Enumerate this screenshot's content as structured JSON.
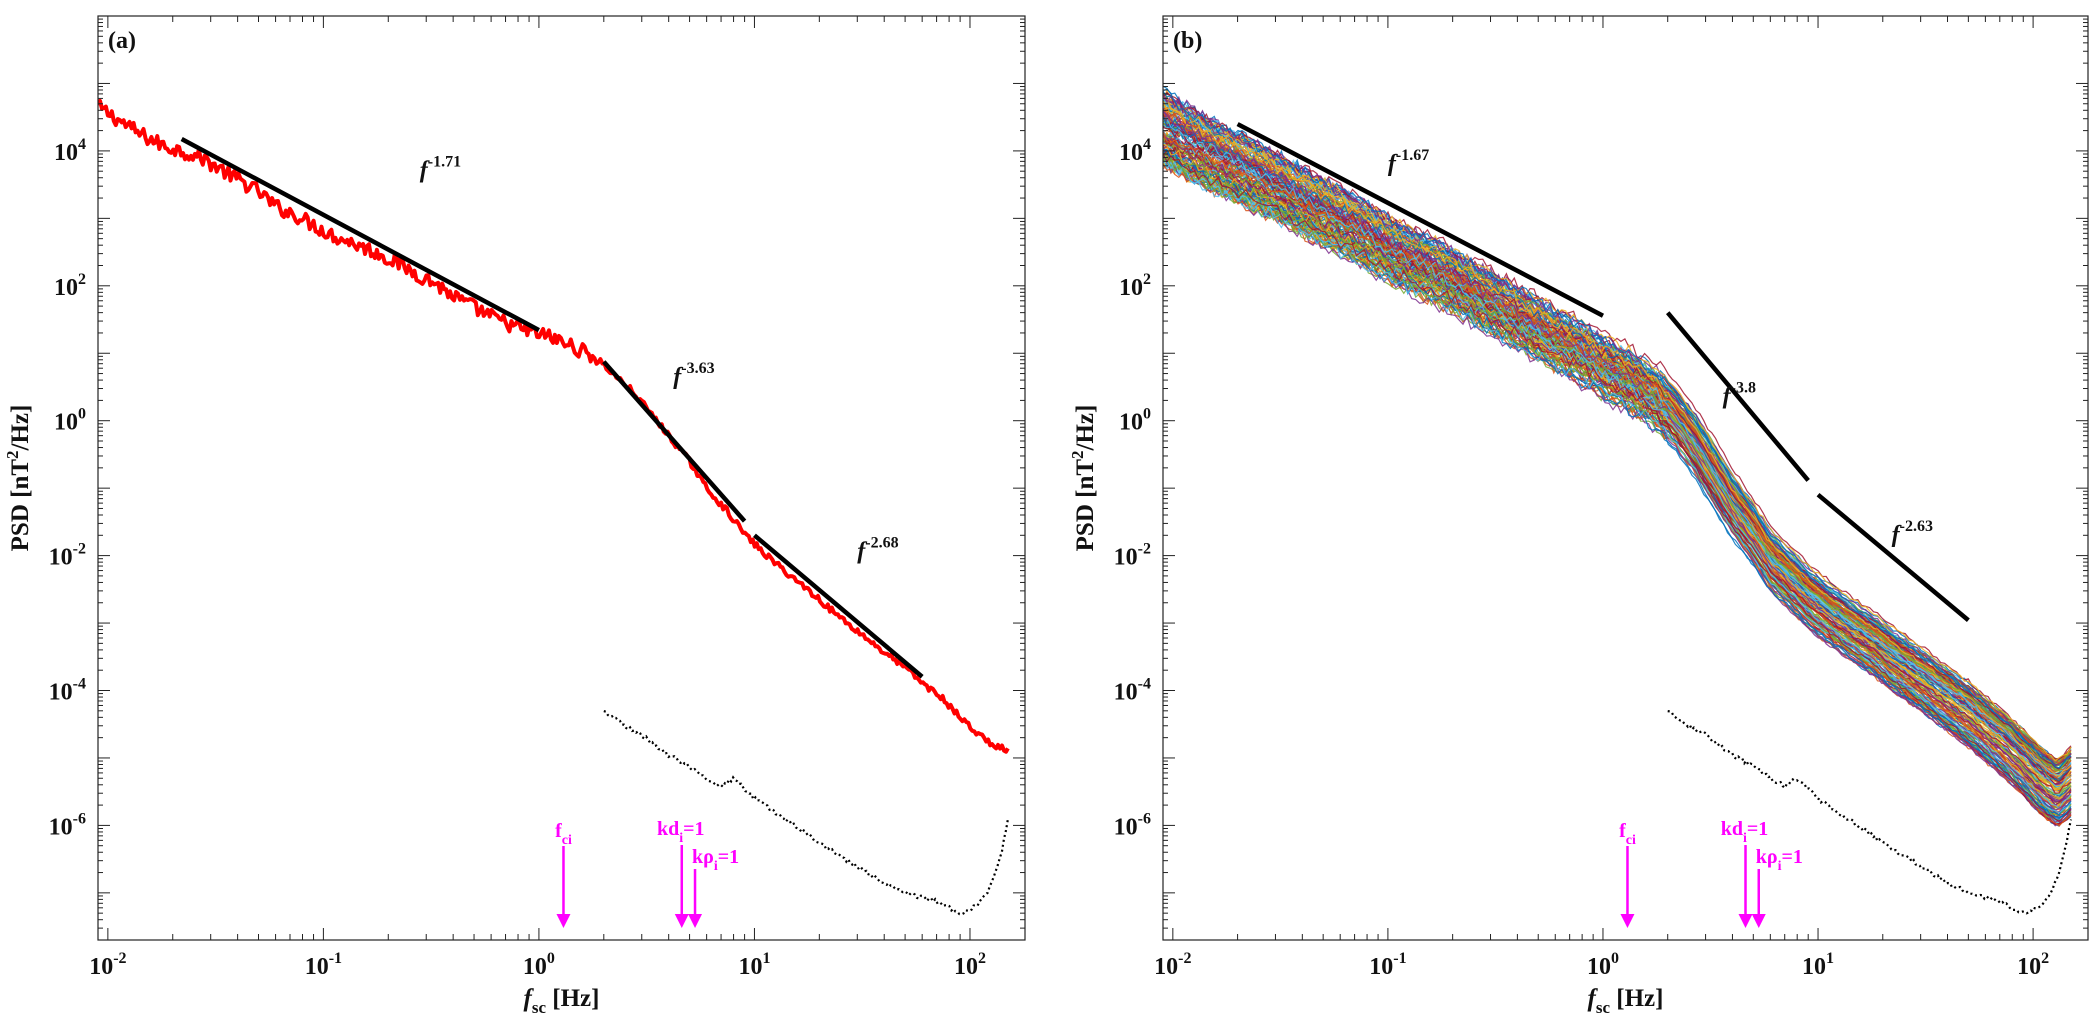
{
  "chart_data": [
    {
      "type": "line",
      "panel_label": "(a)",
      "xlabel": {
        "main": "f",
        "sub": "sc",
        "unit": "[Hz]"
      },
      "ylabel": {
        "pre": "PSD [nT",
        "sup": "2",
        "post": "/Hz]"
      },
      "x_scale": "log",
      "y_scale": "log",
      "xlim": [
        0.009,
        180
      ],
      "ylim": [
        2e-08,
        1000000.0
      ],
      "x_ticks": [
        {
          "base": "10",
          "exp": "-2",
          "value": 0.01
        },
        {
          "base": "10",
          "exp": "-1",
          "value": 0.1
        },
        {
          "base": "10",
          "exp": "0",
          "value": 1
        },
        {
          "base": "10",
          "exp": "1",
          "value": 10
        },
        {
          "base": "10",
          "exp": "2",
          "value": 100
        }
      ],
      "y_ticks": [
        {
          "base": "10",
          "exp": "4",
          "value": 10000
        },
        {
          "base": "10",
          "exp": "2",
          "value": 100
        },
        {
          "base": "10",
          "exp": "0",
          "value": 1
        },
        {
          "base": "10",
          "exp": "-2",
          "value": 0.01
        },
        {
          "base": "10",
          "exp": "-4",
          "value": 0.0001
        },
        {
          "base": "10",
          "exp": "-6",
          "value": 1e-06
        }
      ],
      "grid": false,
      "series": [
        {
          "style": "spectrum",
          "color": "#ff0000",
          "x": [
            0.009,
            0.011,
            0.014,
            0.018,
            0.022,
            0.027,
            0.033,
            0.04,
            0.05,
            0.06,
            0.075,
            0.09,
            0.11,
            0.14,
            0.18,
            0.22,
            0.27,
            0.33,
            0.4,
            0.5,
            0.6,
            0.75,
            0.9,
            1.1,
            1.4,
            1.8,
            2.2,
            2.7,
            3.3,
            4,
            5,
            6,
            7.5,
            9,
            11,
            14,
            18,
            22,
            27,
            33,
            40,
            50,
            60,
            75,
            90,
            110,
            130,
            150
          ],
          "y": [
            45000,
            30000,
            18000,
            12000,
            10000,
            8000,
            5500,
            3800,
            2500,
            1500,
            1100,
            800,
            560,
            420,
            300,
            220,
            150,
            110,
            70,
            48,
            35,
            26,
            21,
            18,
            13,
            9,
            5,
            2.8,
            1.3,
            0.6,
            0.25,
            0.1,
            0.045,
            0.021,
            0.011,
            0.0057,
            0.003,
            0.0017,
            0.001,
            0.0006,
            0.00037,
            0.00022,
            0.00013,
            7.5e-05,
            4e-05,
            2.2e-05,
            1.5e-05,
            1.3e-05
          ]
        },
        {
          "style": "noise",
          "color": "#000000",
          "x": [
            2,
            2.5,
            3,
            3.5,
            4,
            5,
            6,
            7,
            8,
            10,
            13,
            16,
            20,
            25,
            32,
            40,
            50,
            60,
            70,
            80,
            90,
            100,
            110,
            120,
            130,
            140,
            150
          ],
          "y": [
            5e-05,
            3e-05,
            2.2e-05,
            1.5e-05,
            1.1e-05,
            7.5e-06,
            5e-06,
            3.8e-06,
            5e-06,
            2.5e-06,
            1.4e-06,
            9e-07,
            5.5e-07,
            3.5e-07,
            2.2e-07,
            1.4e-07,
            1e-07,
            8.5e-08,
            7.5e-08,
            6e-08,
            5e-08,
            5.5e-08,
            7e-08,
            1e-07,
            1.8e-07,
            4e-07,
            1.2e-06
          ]
        }
      ],
      "fits": [
        {
          "label_base": "f",
          "label_exp": "-1.71",
          "slope": -1.71,
          "x": [
            0.022,
            1.0
          ],
          "y": [
            15000,
            22
          ],
          "label_at": [
            0.28,
            4000
          ]
        },
        {
          "label_base": "f",
          "label_exp": "-3.63",
          "slope": -3.63,
          "x": [
            2.0,
            9.0
          ],
          "y": [
            7.5,
            0.0325
          ],
          "label_at": [
            4.2,
            3.5
          ]
        },
        {
          "label_base": "f",
          "label_exp": "-2.68",
          "slope": -2.68,
          "x": [
            10.0,
            60.0
          ],
          "y": [
            0.02,
            0.00016
          ],
          "label_at": [
            30,
            0.009
          ]
        }
      ],
      "markers": [
        {
          "name": "f-ci",
          "label_main": "f",
          "label_sub": "ci",
          "x": 1.3
        },
        {
          "name": "kd-i",
          "label_main": "kd",
          "label_sub": "i",
          "label_tail": "=1",
          "x": 4.6
        },
        {
          "name": "krho-i",
          "label_main": "kρ",
          "label_sub": "i",
          "label_tail": "=1",
          "x": 5.3
        }
      ]
    },
    {
      "type": "line",
      "panel_label": "(b)",
      "xlabel": {
        "main": "f",
        "sub": "sc",
        "unit": "[Hz]"
      },
      "ylabel": {
        "pre": "PSD [nT",
        "sup": "2",
        "post": "/Hz]"
      },
      "x_scale": "log",
      "y_scale": "log",
      "xlim": [
        0.009,
        180
      ],
      "ylim": [
        2e-08,
        1000000.0
      ],
      "x_ticks": [
        {
          "base": "10",
          "exp": "-2",
          "value": 0.01
        },
        {
          "base": "10",
          "exp": "-1",
          "value": 0.1
        },
        {
          "base": "10",
          "exp": "0",
          "value": 1
        },
        {
          "base": "10",
          "exp": "1",
          "value": 10
        },
        {
          "base": "10",
          "exp": "2",
          "value": 100
        }
      ],
      "y_ticks": [
        {
          "base": "10",
          "exp": "4",
          "value": 10000
        },
        {
          "base": "10",
          "exp": "2",
          "value": 100
        },
        {
          "base": "10",
          "exp": "0",
          "value": 1
        },
        {
          "base": "10",
          "exp": "-2",
          "value": 0.01
        },
        {
          "base": "10",
          "exp": "-4",
          "value": 0.0001
        },
        {
          "base": "10",
          "exp": "-6",
          "value": 1e-06
        }
      ],
      "grid": false,
      "series": [
        {
          "style": "spectrum-ensemble",
          "colors": [
            "#0072bd",
            "#d95319",
            "#edb120",
            "#7e2f8e",
            "#77ac30",
            "#4dbeee",
            "#a2142f"
          ],
          "x": [
            0.009,
            0.011,
            0.014,
            0.018,
            0.022,
            0.027,
            0.033,
            0.04,
            0.05,
            0.06,
            0.075,
            0.09,
            0.11,
            0.14,
            0.18,
            0.22,
            0.27,
            0.33,
            0.4,
            0.5,
            0.6,
            0.75,
            0.9,
            1.1,
            1.4,
            1.8,
            2.2,
            2.7,
            3.3,
            4,
            5,
            6,
            7.5,
            9,
            11,
            14,
            18,
            22,
            27,
            33,
            40,
            50,
            60,
            75,
            90,
            110,
            130,
            150
          ],
          "y": [
            25000,
            17000,
            11000,
            7500,
            5500,
            4000,
            2800,
            2000,
            1400,
            1000,
            700,
            480,
            330,
            230,
            160,
            110,
            75,
            52,
            36,
            25,
            17,
            12,
            8.5,
            5.8,
            3.8,
            2.2,
            1.1,
            0.45,
            0.16,
            0.058,
            0.022,
            0.009,
            0.0045,
            0.0025,
            0.0015,
            0.00085,
            0.0005,
            0.0003,
            0.00019,
            0.00012,
            7.5e-05,
            4.5e-05,
            2.7e-05,
            1.5e-05,
            8.5e-06,
            4.5e-06,
            3e-06,
            4.5e-06
          ],
          "spread_low": 0.55,
          "spread_high": 0.5
        },
        {
          "style": "noise",
          "color": "#000000",
          "x": [
            2,
            2.5,
            3,
            3.5,
            4,
            5,
            6,
            7,
            8,
            10,
            13,
            16,
            20,
            25,
            32,
            40,
            50,
            60,
            70,
            80,
            90,
            100,
            110,
            120,
            130,
            140,
            150
          ],
          "y": [
            5e-05,
            3e-05,
            2.2e-05,
            1.5e-05,
            1.1e-05,
            7.5e-06,
            5e-06,
            3.8e-06,
            5e-06,
            2.5e-06,
            1.4e-06,
            9e-07,
            5.5e-07,
            3.5e-07,
            2.2e-07,
            1.4e-07,
            1e-07,
            8.5e-08,
            7.5e-08,
            6e-08,
            5e-08,
            5.5e-08,
            7e-08,
            1e-07,
            1.8e-07,
            4e-07,
            1.2e-06
          ]
        }
      ],
      "fits": [
        {
          "label_base": "f",
          "label_exp": "-1.67",
          "slope": -1.67,
          "x": [
            0.02,
            1.0
          ],
          "y": [
            25000,
            36
          ],
          "label_at": [
            0.1,
            5000
          ]
        },
        {
          "label_base": "f",
          "label_exp": "-3.8",
          "slope": -3.8,
          "x": [
            2.0,
            9.0
          ],
          "y": [
            40,
            0.13
          ],
          "label_at": [
            3.6,
            1.8
          ]
        },
        {
          "label_base": "f",
          "label_exp": "-2.63",
          "slope": -2.63,
          "x": [
            10.0,
            50.0
          ],
          "y": [
            0.08,
            0.0011
          ],
          "label_at": [
            22,
            0.016
          ]
        }
      ],
      "markers": [
        {
          "name": "f-ci",
          "label_main": "f",
          "label_sub": "ci",
          "x": 1.3
        },
        {
          "name": "kd-i",
          "label_main": "kd",
          "label_sub": "i",
          "label_tail": "=1",
          "x": 4.6
        },
        {
          "name": "krho-i",
          "label_main": "kρ",
          "label_sub": "i",
          "label_tail": "=1",
          "x": 5.3
        }
      ]
    }
  ]
}
